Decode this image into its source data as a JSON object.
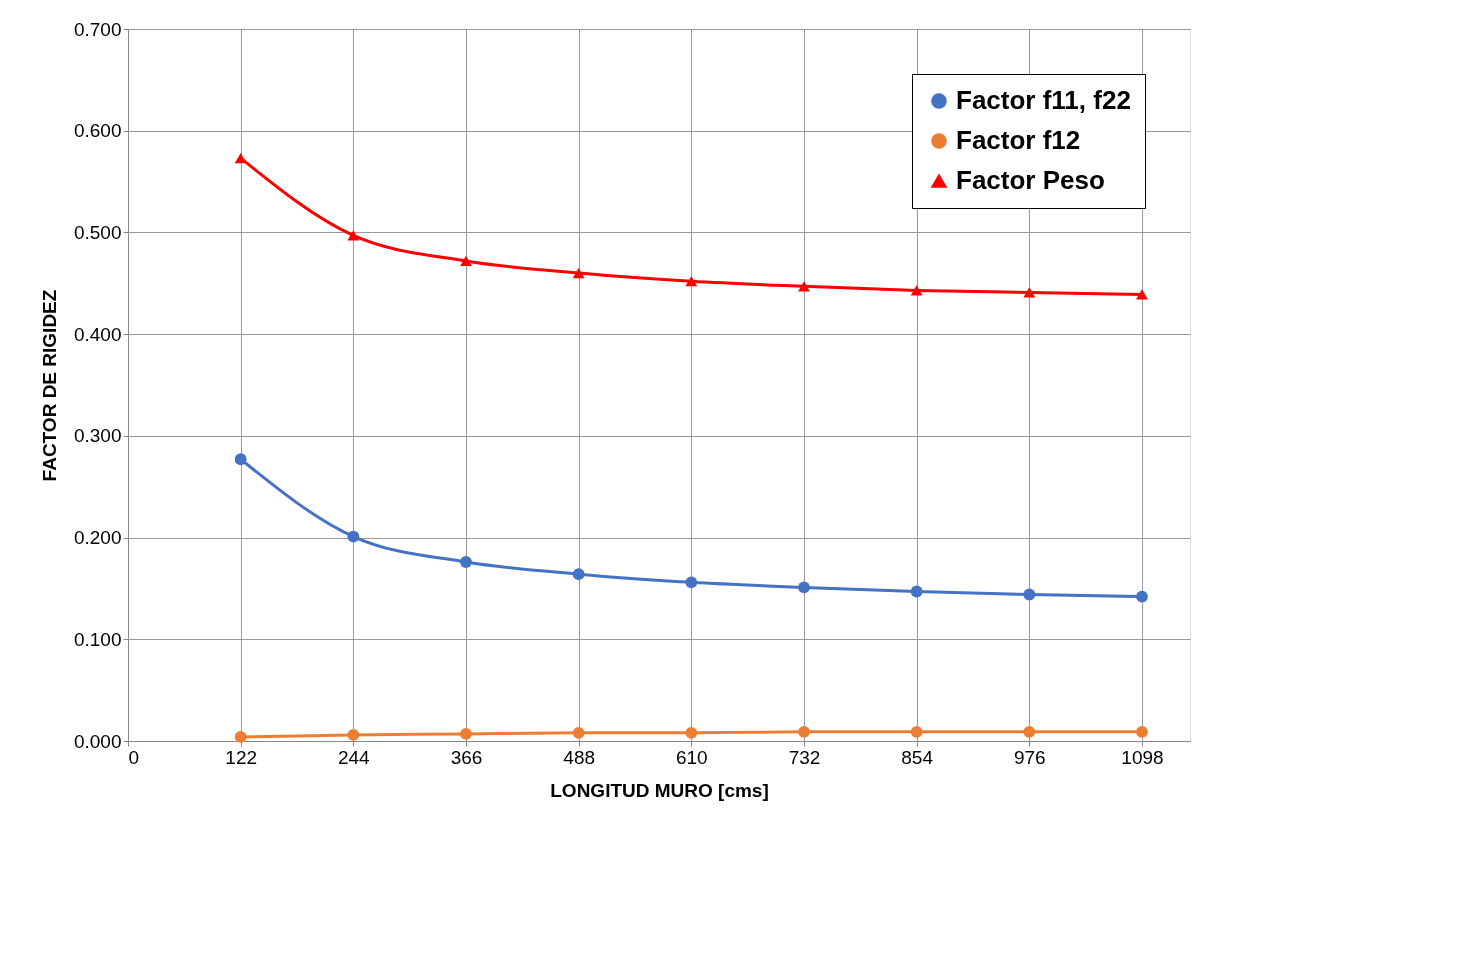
{
  "chart_data": {
    "type": "line",
    "xlabel": "LONGITUD MURO [cms]",
    "ylabel": "FACTOR DE RIGIDEZ",
    "x": [
      122,
      244,
      366,
      488,
      610,
      732,
      854,
      976,
      1098
    ],
    "series": [
      {
        "name": "Factor f11, f22",
        "color": "#4472c4",
        "marker": "circle",
        "values": [
          0.277,
          0.201,
          0.176,
          0.164,
          0.156,
          0.151,
          0.147,
          0.144,
          0.142
        ]
      },
      {
        "name": "Factor f12",
        "color": "#ed7d31",
        "marker": "circle",
        "values": [
          0.004,
          0.006,
          0.007,
          0.008,
          0.008,
          0.009,
          0.009,
          0.009,
          0.009
        ]
      },
      {
        "name": "Factor Peso",
        "color": "#ff0000",
        "marker": "triangle",
        "values": [
          0.573,
          0.497,
          0.472,
          0.46,
          0.452,
          0.447,
          0.443,
          0.441,
          0.439
        ]
      }
    ],
    "xlim": [
      0,
      1150
    ],
    "xticks": [
      0,
      122,
      244,
      366,
      488,
      610,
      732,
      854,
      976,
      1098
    ],
    "ylim": [
      0,
      0.7
    ],
    "yticks": [
      {
        "value": 0,
        "label": "0.000"
      },
      {
        "value": 0.1,
        "label": "0.100"
      },
      {
        "value": 0.2,
        "label": "0.200"
      },
      {
        "value": 0.3,
        "label": "0.300"
      },
      {
        "value": 0.4,
        "label": "0.400"
      },
      {
        "value": 0.5,
        "label": "0.500"
      },
      {
        "value": 0.6,
        "label": "0.600"
      },
      {
        "value": 0.7,
        "label": "0.700"
      }
    ],
    "grid": true,
    "legend": "top right",
    "line_style": "solid"
  }
}
